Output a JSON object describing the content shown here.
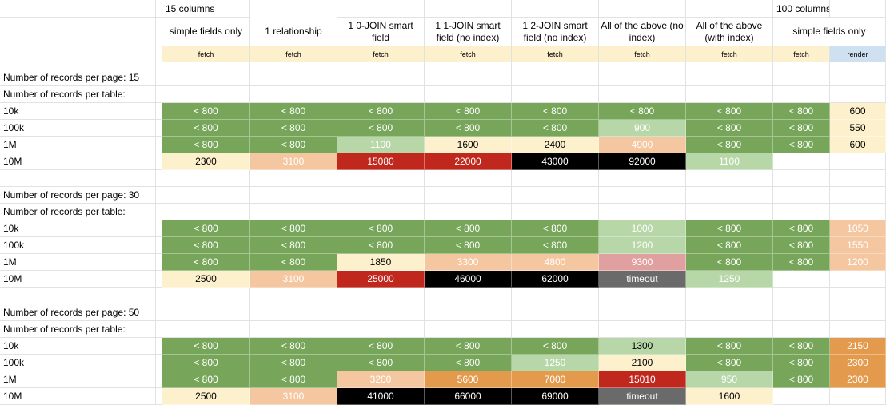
{
  "header": {
    "group_15": "15 columns",
    "group_100": "100 columns",
    "columns": [
      "simple fields only",
      "1 relationship",
      "1 0-JOIN smart field",
      "1 1-JOIN smart field (no index)",
      "1 2-JOIN smart field (no index)",
      "All of the above (no index)",
      "All of the above (with index)",
      "simple fields only"
    ],
    "modes": [
      "fetch",
      "fetch",
      "fetch",
      "fetch",
      "fetch",
      "fetch",
      "fetch",
      "fetch",
      "render"
    ]
  },
  "colors": {
    "green": "#77a65a",
    "light_green": "#b8d7a8",
    "cream": "#fdf1cd",
    "peach": "#f4c7a1",
    "orange": "#e39a4d",
    "red": "#c0281e",
    "black": "#000000",
    "gray": "#6a6a6a",
    "pink": "#e0a0a0",
    "blue": "#cfe1f0"
  },
  "sections": [
    {
      "page_label": "Number of records per page: 15",
      "table_label": "Number of records per table:",
      "rows": [
        {
          "label": "10k",
          "cells": [
            [
              "< 800",
              "g"
            ],
            [
              "< 800",
              "g"
            ],
            [
              "< 800",
              "g"
            ],
            [
              "< 800",
              "g"
            ],
            [
              "< 800",
              "g"
            ],
            [
              "< 800",
              "g"
            ],
            [
              "< 800",
              "g"
            ],
            [
              "< 800",
              "g"
            ],
            [
              "600",
              "cr"
            ]
          ]
        },
        {
          "label": "100k",
          "cells": [
            [
              "< 800",
              "g"
            ],
            [
              "< 800",
              "g"
            ],
            [
              "< 800",
              "g"
            ],
            [
              "< 800",
              "g"
            ],
            [
              "< 800",
              "g"
            ],
            [
              "900",
              "lg"
            ],
            [
              "< 800",
              "g"
            ],
            [
              "< 800",
              "g"
            ],
            [
              "550",
              "cr"
            ]
          ]
        },
        {
          "label": "1M",
          "cells": [
            [
              "< 800",
              "g"
            ],
            [
              "< 800",
              "g"
            ],
            [
              "1100",
              "lg"
            ],
            [
              "1600",
              "cr"
            ],
            [
              "2400",
              "cr"
            ],
            [
              "4900",
              "pe"
            ],
            [
              "< 800",
              "g"
            ],
            [
              "< 800",
              "g"
            ],
            [
              "600",
              "cr"
            ]
          ]
        },
        {
          "label": "10M",
          "cells": [
            [
              "2300",
              "cr"
            ],
            [
              "3100",
              "pe"
            ],
            [
              "15080",
              "rd"
            ],
            [
              "22000",
              "rd"
            ],
            [
              "43000",
              "bk"
            ],
            [
              "92000",
              "bk"
            ],
            [
              "1100",
              "lg"
            ],
            [
              "",
              ""
            ],
            [
              "",
              ""
            ]
          ]
        }
      ]
    },
    {
      "page_label": "Number of records per page: 30",
      "table_label": "Number of records per table:",
      "rows": [
        {
          "label": "10k",
          "cells": [
            [
              "< 800",
              "g"
            ],
            [
              "< 800",
              "g"
            ],
            [
              "< 800",
              "g"
            ],
            [
              "< 800",
              "g"
            ],
            [
              "< 800",
              "g"
            ],
            [
              "1000",
              "lg"
            ],
            [
              "< 800",
              "g"
            ],
            [
              "< 800",
              "g"
            ],
            [
              "1050",
              "pe"
            ]
          ]
        },
        {
          "label": "100k",
          "cells": [
            [
              "< 800",
              "g"
            ],
            [
              "< 800",
              "g"
            ],
            [
              "< 800",
              "g"
            ],
            [
              "< 800",
              "g"
            ],
            [
              "< 800",
              "g"
            ],
            [
              "1200",
              "lg"
            ],
            [
              "< 800",
              "g"
            ],
            [
              "< 800",
              "g"
            ],
            [
              "1550",
              "pe"
            ]
          ]
        },
        {
          "label": "1M",
          "cells": [
            [
              "< 800",
              "g"
            ],
            [
              "< 800",
              "g"
            ],
            [
              "1850",
              "cr"
            ],
            [
              "3300",
              "pe"
            ],
            [
              "4800",
              "pe"
            ],
            [
              "9300",
              "pk"
            ],
            [
              "< 800",
              "g"
            ],
            [
              "< 800",
              "g"
            ],
            [
              "1200",
              "pe"
            ]
          ]
        },
        {
          "label": "10M",
          "cells": [
            [
              "2500",
              "cr"
            ],
            [
              "3100",
              "pe"
            ],
            [
              "25000",
              "rd"
            ],
            [
              "46000",
              "bk"
            ],
            [
              "62000",
              "bk"
            ],
            [
              "timeout",
              "gy"
            ],
            [
              "1250",
              "lg"
            ],
            [
              "",
              ""
            ],
            [
              "",
              ""
            ]
          ]
        }
      ]
    },
    {
      "page_label": "Number of records per page: 50",
      "table_label": "Number of records per table:",
      "rows": [
        {
          "label": "10k",
          "cells": [
            [
              "< 800",
              "g"
            ],
            [
              "< 800",
              "g"
            ],
            [
              "< 800",
              "g"
            ],
            [
              "< 800",
              "g"
            ],
            [
              "< 800",
              "g"
            ],
            [
              "1300",
              "lg"
            ],
            [
              "< 800",
              "g"
            ],
            [
              "< 800",
              "g"
            ],
            [
              "2150",
              "or"
            ]
          ]
        },
        {
          "label": "100k",
          "cells": [
            [
              "< 800",
              "g"
            ],
            [
              "< 800",
              "g"
            ],
            [
              "< 800",
              "g"
            ],
            [
              "< 800",
              "g"
            ],
            [
              "1250",
              "lg"
            ],
            [
              "2100",
              "cr"
            ],
            [
              "< 800",
              "g"
            ],
            [
              "< 800",
              "g"
            ],
            [
              "2300",
              "or"
            ]
          ]
        },
        {
          "label": "1M",
          "cells": [
            [
              "< 800",
              "g"
            ],
            [
              "< 800",
              "g"
            ],
            [
              "3200",
              "pe"
            ],
            [
              "5600",
              "or"
            ],
            [
              "7000",
              "or"
            ],
            [
              "15010",
              "rd"
            ],
            [
              "950",
              "lg"
            ],
            [
              "< 800",
              "g"
            ],
            [
              "2300",
              "or"
            ]
          ]
        },
        {
          "label": "10M",
          "cells": [
            [
              "2500",
              "cr"
            ],
            [
              "3100",
              "pe"
            ],
            [
              "41000",
              "bk"
            ],
            [
              "66000",
              "bk"
            ],
            [
              "69000",
              "bk"
            ],
            [
              "timeout",
              "gy"
            ],
            [
              "1600",
              "cr"
            ],
            [
              "",
              ""
            ],
            [
              "",
              ""
            ]
          ]
        }
      ]
    }
  ]
}
